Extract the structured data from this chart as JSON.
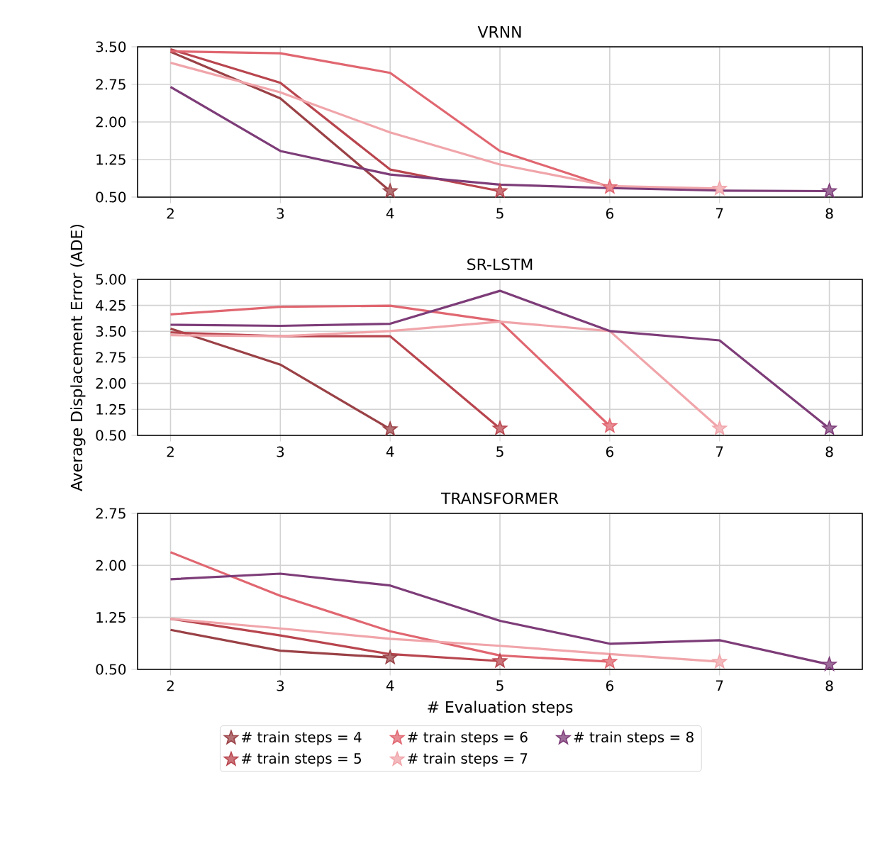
{
  "chart_data": [
    {
      "type": "line",
      "title": "VRNN",
      "grid": true,
      "xlim": [
        1.7,
        8.3
      ],
      "xticks": [
        2,
        3,
        4,
        5,
        6,
        7,
        8
      ],
      "ylim": [
        0.5,
        3.5
      ],
      "yticks": [
        {
          "value": 0.5,
          "label": "0.50"
        },
        {
          "value": 1.25,
          "label": "1.25"
        },
        {
          "value": 2.0,
          "label": "2.00"
        },
        {
          "value": 2.75,
          "label": "2.75"
        },
        {
          "value": 3.5,
          "label": "3.50"
        }
      ],
      "series": [
        {
          "color": "#9a4146",
          "x": [
            2,
            3,
            4
          ],
          "values": [
            3.4,
            2.47,
            0.62
          ]
        },
        {
          "color": "#b8454e",
          "x": [
            2,
            3,
            4,
            5
          ],
          "values": [
            3.45,
            2.78,
            1.05,
            0.62
          ]
        },
        {
          "color": "#e06670",
          "x": [
            2,
            3,
            4,
            5,
            6
          ],
          "values": [
            3.41,
            3.37,
            2.98,
            1.42,
            0.7
          ]
        },
        {
          "color": "#f0a5aa",
          "x": [
            2,
            3,
            4,
            5,
            6,
            7
          ],
          "values": [
            3.18,
            2.59,
            1.79,
            1.15,
            0.72,
            0.67
          ]
        },
        {
          "color": "#7d3c78",
          "x": [
            2,
            3,
            4,
            5,
            6,
            7,
            8
          ],
          "values": [
            2.7,
            1.42,
            0.95,
            0.75,
            0.68,
            0.63,
            0.62
          ]
        }
      ]
    },
    {
      "type": "line",
      "title": "SR-LSTM",
      "ylabel": "Average Displacement Error (ADE)",
      "grid": true,
      "xlim": [
        1.7,
        8.3
      ],
      "xticks": [
        2,
        3,
        4,
        5,
        6,
        7,
        8
      ],
      "ylim": [
        0.5,
        5.0
      ],
      "yticks": [
        {
          "value": 0.5,
          "label": "0.50"
        },
        {
          "value": 1.25,
          "label": "1.25"
        },
        {
          "value": 2.0,
          "label": "2.00"
        },
        {
          "value": 2.75,
          "label": "2.75"
        },
        {
          "value": 3.5,
          "label": "3.50"
        },
        {
          "value": 4.25,
          "label": "4.25"
        },
        {
          "value": 5.0,
          "label": "5.00"
        }
      ],
      "series": [
        {
          "color": "#9a4146",
          "x": [
            2,
            3,
            4
          ],
          "values": [
            3.58,
            2.54,
            0.68
          ]
        },
        {
          "color": "#b8454e",
          "x": [
            2,
            3,
            4,
            5
          ],
          "values": [
            3.47,
            3.36,
            3.36,
            0.7
          ]
        },
        {
          "color": "#e06670",
          "x": [
            2,
            3,
            4,
            5,
            6
          ],
          "values": [
            3.99,
            4.21,
            4.24,
            3.79,
            0.77
          ]
        },
        {
          "color": "#f0a5aa",
          "x": [
            2,
            3,
            4,
            5,
            6,
            7
          ],
          "values": [
            3.39,
            3.36,
            3.51,
            3.78,
            3.51,
            0.7
          ]
        },
        {
          "color": "#7d3c78",
          "x": [
            2,
            3,
            4,
            5,
            6,
            7,
            8
          ],
          "values": [
            3.69,
            3.66,
            3.72,
            4.67,
            3.51,
            3.24,
            0.7
          ]
        }
      ]
    },
    {
      "type": "line",
      "title": "TRANSFORMER",
      "xlabel": "# Evaluation steps",
      "grid": true,
      "legend": "bottom",
      "xlim": [
        1.7,
        8.3
      ],
      "xticks": [
        2,
        3,
        4,
        5,
        6,
        7,
        8
      ],
      "ylim": [
        0.5,
        2.75
      ],
      "yticks": [
        {
          "value": 0.5,
          "label": "0.50"
        },
        {
          "value": 1.25,
          "label": "1.25"
        },
        {
          "value": 2.0,
          "label": "2.00"
        },
        {
          "value": 2.75,
          "label": "2.75"
        }
      ],
      "series": [
        {
          "name": "# train steps = 4",
          "color": "#9a4146",
          "x": [
            2,
            3,
            4
          ],
          "values": [
            1.07,
            0.77,
            0.67
          ]
        },
        {
          "name": "# train steps = 5",
          "color": "#b8454e",
          "x": [
            2,
            3,
            4,
            5
          ],
          "values": [
            1.23,
            0.99,
            0.72,
            0.62
          ]
        },
        {
          "name": "# train steps = 6",
          "color": "#e06670",
          "x": [
            2,
            3,
            4,
            5,
            6
          ],
          "values": [
            2.19,
            1.56,
            1.05,
            0.7,
            0.61
          ]
        },
        {
          "name": "# train steps = 7",
          "color": "#f0a5aa",
          "x": [
            2,
            3,
            4,
            5,
            6,
            7
          ],
          "values": [
            1.23,
            1.09,
            0.94,
            0.84,
            0.72,
            0.61
          ]
        },
        {
          "name": "# train steps = 8",
          "color": "#7d3c78",
          "x": [
            2,
            3,
            4,
            5,
            6,
            7,
            8
          ],
          "values": [
            1.8,
            1.88,
            1.71,
            1.2,
            0.87,
            0.92,
            0.57
          ]
        }
      ]
    }
  ]
}
